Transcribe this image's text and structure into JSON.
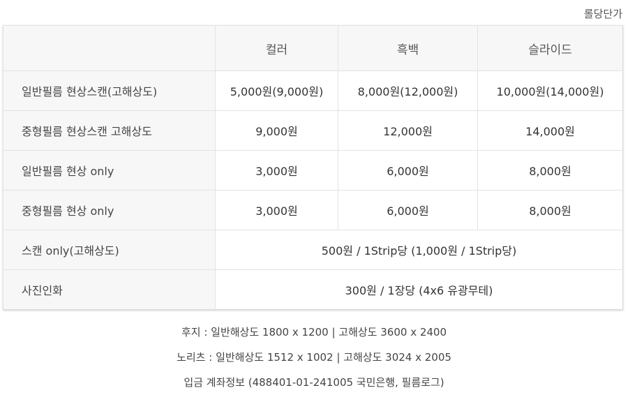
{
  "unit_note": "롤당단가",
  "table": {
    "headers": [
      "",
      "컬러",
      "흑백",
      "슬라이드"
    ],
    "rows": [
      {
        "label": "일반필름 현상스캔(고해상도)",
        "color": "5,000원(9,000원)",
        "bw": "8,000원(12,000원)",
        "slide": "10,000원(14,000원)"
      },
      {
        "label": "중형필름 현상스캔 고해상도",
        "color": "9,000원",
        "bw": "12,000원",
        "slide": "14,000원"
      },
      {
        "label": "일반필름 현상 only",
        "color": "3,000원",
        "bw": "6,000원",
        "slide": "8,000원"
      },
      {
        "label": "중형필름 현상 only",
        "color": "3,000원",
        "bw": "6,000원",
        "slide": "8,000원"
      }
    ],
    "span_rows": [
      {
        "label": "스캔 only(고해상도)",
        "value": "500원 / 1Strip당 (1,000원 / 1Strip당)"
      },
      {
        "label": "사진인화",
        "value": "300원 / 1장당 (4x6 유광무테)"
      }
    ]
  },
  "footer": {
    "line1": "후지 : 일반해상도 1800 x 1200 | 고해상도 3600 x 2400",
    "line2": "노리츠 : 일반해상도 1512 x 1002 | 고해상도 3024 x 2005",
    "line3": "입금 계좌정보 (488401-01-241005 국민은행, 필름로그)"
  }
}
